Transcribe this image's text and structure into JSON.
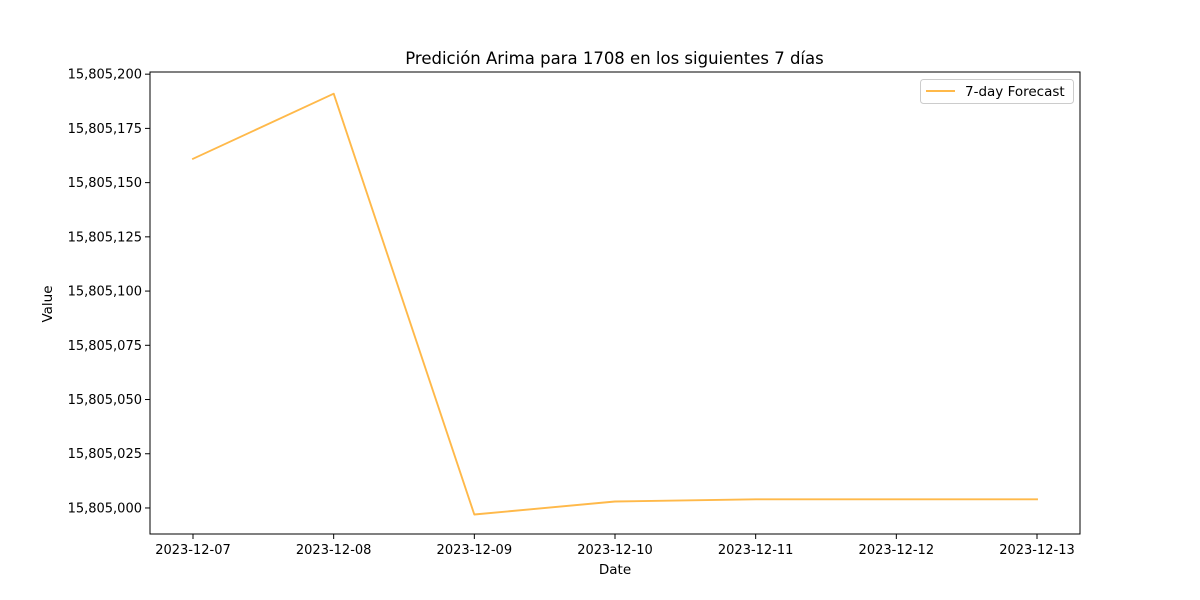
{
  "chart_data": {
    "type": "line",
    "title": "Predición Arima para 1708 en los siguientes 7 días",
    "xlabel": "Date",
    "ylabel": "Value",
    "x": [
      "2023-12-07",
      "2023-12-08",
      "2023-12-09",
      "2023-12-10",
      "2023-12-11",
      "2023-12-12",
      "2023-12-13"
    ],
    "series": [
      {
        "name": "7-day Forecast",
        "color": "#ffb94a",
        "values": [
          15805161,
          15805191,
          15804997,
          15805003,
          15805004,
          15805004,
          15805004
        ]
      }
    ],
    "yticks": [
      15805000,
      15805025,
      15805050,
      15805075,
      15805100,
      15805125,
      15805150,
      15805175,
      15805200
    ],
    "ytick_labels": [
      "15,805,000",
      "15,805,025",
      "15,805,050",
      "15,805,075",
      "15,805,100",
      "15,805,125",
      "15,805,150",
      "15,805,175",
      "15,805,200"
    ],
    "ylim": [
      15804988,
      15805201
    ],
    "grid": false,
    "legend_position": "upper-right"
  }
}
